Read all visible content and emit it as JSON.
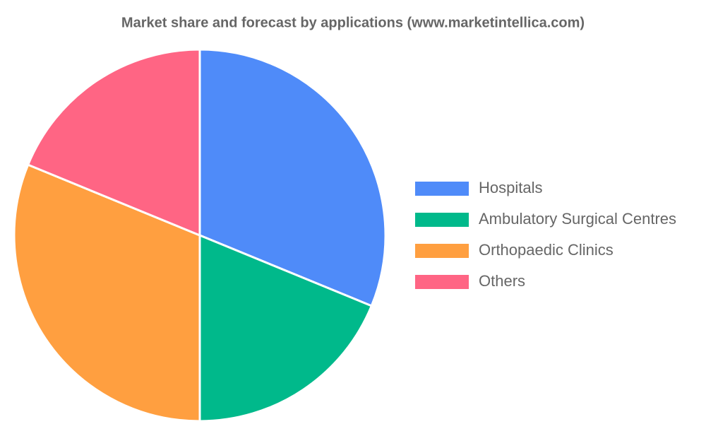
{
  "chart_data": {
    "type": "pie",
    "title": "Market share and forecast by applications (www.marketintellica.com)",
    "categories": [
      "Hospitals",
      "Ambulatory Surgical Centres",
      "Orthopaedic Clinics",
      "Others"
    ],
    "values": [
      31.2,
      18.8,
      31.2,
      18.8
    ],
    "colors": [
      "#4f8bf9",
      "#00b98b",
      "#ff9f40",
      "#ff6584"
    ],
    "legend": "right"
  }
}
